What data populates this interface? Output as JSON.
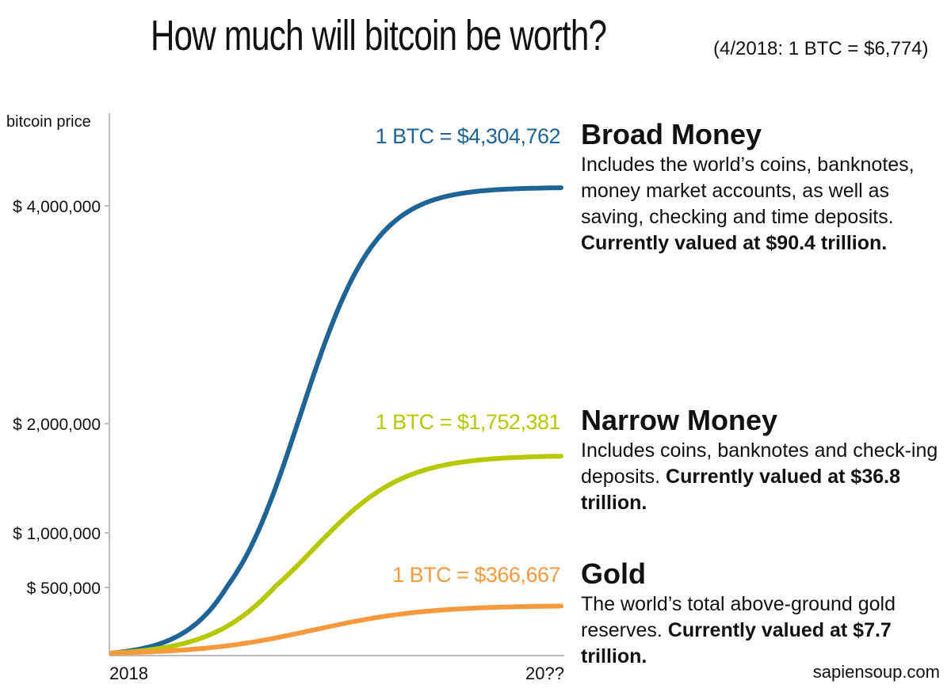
{
  "header": {
    "title": "How much will bitcoin be worth?",
    "subtitle": "(4/2018: 1 BTC = $6,774)"
  },
  "chart_data": {
    "type": "line",
    "ylabel": "bitcoin price",
    "xlabel": "",
    "x_tick_labels": [
      "2018",
      "20??"
    ],
    "y_ticks": [
      {
        "value": 500000,
        "label": "$ 500,000"
      },
      {
        "value": 1000000,
        "label": "$ 1,000,000"
      },
      {
        "value": 2000000,
        "label": "$ 2,000,000"
      },
      {
        "value": 4000000,
        "label": "$ 4,000,000"
      }
    ],
    "y_range": [
      0,
      5000000
    ],
    "y_scale": "nonlinear",
    "grid": false,
    "series": [
      {
        "name": "Broad Money",
        "start": 6774,
        "end": 4304762,
        "curve": "logistic",
        "label": "1 BTC = $4,304,762",
        "color": "#1f6496"
      },
      {
        "name": "Narrow Money",
        "start": 6774,
        "end": 1752381,
        "curve": "logistic",
        "label": "1 BTC = $1,752,381",
        "color": "#b7c800"
      },
      {
        "name": "Gold",
        "start": 6774,
        "end": 366667,
        "curve": "logistic",
        "label": "1 BTC = $366,667",
        "color": "#f79a3e"
      }
    ]
  },
  "descriptions": [
    {
      "title": "Broad Money",
      "text": "Includes the world’s coins, banknotes, money market accounts, as well as saving, checking and time deposits.",
      "bold": "Currently valued at $90.4 trillion."
    },
    {
      "title": "Narrow Money",
      "text": "Includes coins, banknotes and check-ing deposits.",
      "bold": "Currently valued at $36.8 trillion."
    },
    {
      "title": "Gold",
      "text": "The world’s total above-ground gold reserves.",
      "bold": "Currently valued at $7.7 trillion."
    }
  ],
  "credit": "sapiensoup.com"
}
